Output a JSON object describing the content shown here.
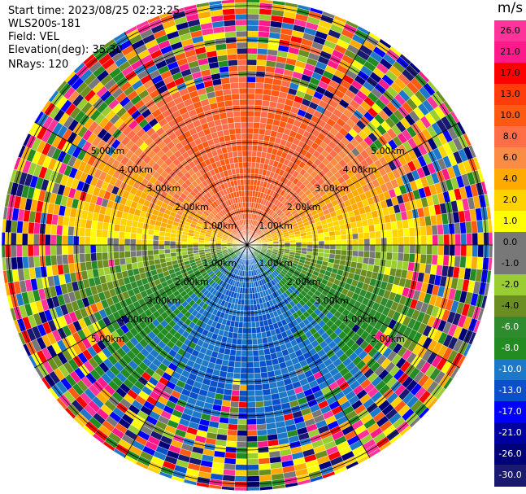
{
  "header": {
    "start_time": "Start time: 2023/08/25 02:23:25",
    "station": "WLS200s-181",
    "field": "Field: VEL",
    "elevation": "Elevation(deg): 35.30",
    "nrays": "NRays: 120"
  },
  "colorbar": {
    "unit": "m/s",
    "ticks": [
      "26.0",
      "21.0",
      "17.0",
      "13.0",
      "10.0",
      "8.0",
      "6.0",
      "4.0",
      "2.0",
      "1.0",
      "0.0",
      "-1.0",
      "-2.0",
      "-4.0",
      "-6.0",
      "-8.0",
      "-10.0",
      "-13.0",
      "-17.0",
      "-21.0",
      "-26.0",
      "-30.0"
    ],
    "colors": [
      "#ff3399",
      "#ff1a8c",
      "#ff0000",
      "#ff3c0a",
      "#ff5a14",
      "#ff6e46",
      "#fa8c46",
      "#ffaa00",
      "#ffd200",
      "#ffff00",
      "#787878",
      "#787878",
      "#9acd32",
      "#6b8e23",
      "#2e8b2e",
      "#228b22",
      "#1e78c8",
      "#0a50c8",
      "#0000ff",
      "#0000a0",
      "#000078",
      "#191970"
    ]
  },
  "range_rings": {
    "labels": [
      "1.00km",
      "2.00km",
      "3.00km",
      "4.00km",
      "5.00km"
    ]
  }
}
